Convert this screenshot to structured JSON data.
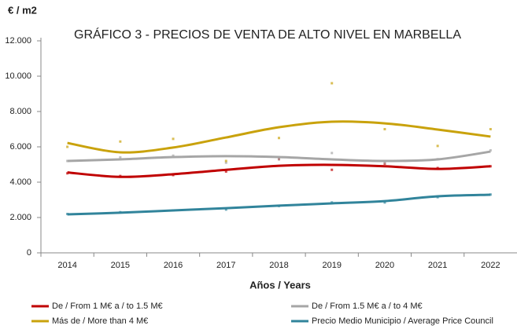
{
  "chart_data": {
    "type": "line",
    "title": "GRÁFICO 3 - PRECIOS DE VENTA DE ALTO NIVEL EN MARBELLA",
    "y_label": "€ / m2",
    "x_label": "Años / Years",
    "categories": [
      "2014",
      "2015",
      "2016",
      "2017",
      "2018",
      "2019",
      "2020",
      "2021",
      "2022"
    ],
    "ylim": [
      0,
      12000
    ],
    "yticks": [
      0,
      {
        "value": 2000,
        "label": "2.000"
      },
      {
        "value": 4000,
        "label": "4.000"
      },
      {
        "value": 6000,
        "label": "6.000"
      },
      {
        "value": 8000,
        "label": "8.000"
      },
      {
        "value": 10000,
        "label": "10.000"
      },
      {
        "value": 12000,
        "label": "12.000"
      }
    ],
    "series": [
      {
        "name": "De / From 1 M€ a / to 1.5 M€",
        "color": "#c00000",
        "values": [
          4550,
          4300,
          4450,
          4700,
          4930,
          4980,
          4900,
          4750,
          4900
        ],
        "points": [
          4500,
          4350,
          4400,
          4600,
          5300,
          4700,
          5050,
          4800,
          4900
        ]
      },
      {
        "name": "De / From 1.5 M€ a / to 4 M€",
        "color": "#a6a6a6",
        "values": [
          5200,
          5290,
          5420,
          5470,
          5420,
          5290,
          5200,
          5290,
          5730
        ],
        "points": [
          5200,
          5400,
          5500,
          5100,
          5300,
          5650,
          5100,
          5300,
          5800
        ]
      },
      {
        "name": "Más de / More than 4 M€",
        "color": "#c9a20c",
        "values": [
          6220,
          5690,
          5960,
          6530,
          7110,
          7420,
          7330,
          6980,
          6580
        ],
        "points": [
          6000,
          6300,
          6450,
          5200,
          6500,
          9600,
          7000,
          6050,
          7000
        ]
      },
      {
        "name": "Precio Medio Municipio / Average Price Council",
        "color": "#31849b",
        "values": [
          2180,
          2270,
          2400,
          2530,
          2670,
          2800,
          2930,
          3200,
          3290
        ],
        "points": [
          2200,
          2300,
          2400,
          2450,
          2650,
          2850,
          2850,
          3150,
          3300
        ]
      }
    ]
  }
}
